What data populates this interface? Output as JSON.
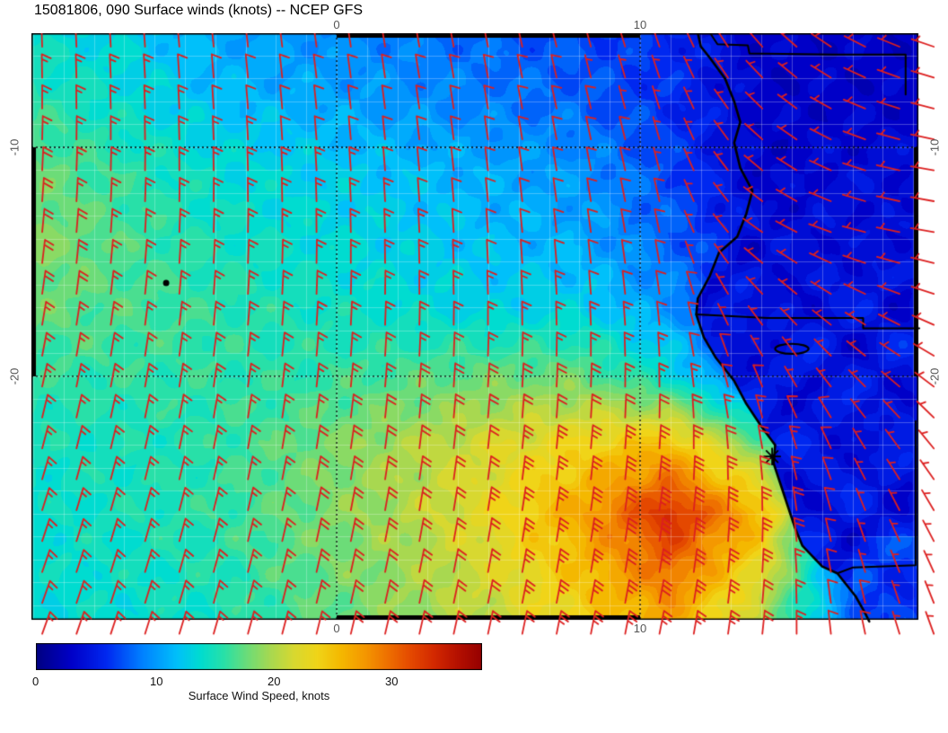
{
  "chart_data": {
    "type": "heatmap",
    "title": "15081806, 090 Surface winds (knots) -- NCEP GFS",
    "axes": {
      "top_ticks": [
        {
          "value": 0,
          "label": "0"
        },
        {
          "value": 10,
          "label": "10"
        }
      ],
      "bottom_ticks": [
        {
          "value": 0,
          "label": "0"
        },
        {
          "value": 10,
          "label": "10"
        }
      ],
      "left_ticks": [
        {
          "value": -10,
          "label": "-10"
        },
        {
          "value": -20,
          "label": "-20"
        }
      ],
      "right_ticks": [
        {
          "value": -10,
          "label": "-10"
        },
        {
          "value": -20,
          "label": "-20"
        }
      ],
      "lon_range": [
        -10.06,
        19.17
      ],
      "lat_range": [
        -5.02,
        -30.63
      ],
      "graticule_step_deg": 1,
      "labeled_lon_lines": [
        0,
        10
      ],
      "labeled_lat_lines": [
        -10,
        -20
      ]
    },
    "colorbar": {
      "label": "Surface Wind Speed, knots",
      "range": [
        0,
        38
      ],
      "ticks": [
        {
          "value": 0,
          "label": "0"
        },
        {
          "value": 10,
          "label": "10"
        },
        {
          "value": 20,
          "label": "20"
        },
        {
          "value": 30,
          "label": "30"
        }
      ],
      "stops": [
        [
          0,
          "#000082"
        ],
        [
          3,
          "#0000c8"
        ],
        [
          6,
          "#0028f0"
        ],
        [
          9,
          "#0080ff"
        ],
        [
          12,
          "#00c0fa"
        ],
        [
          14,
          "#00dcd0"
        ],
        [
          16,
          "#28e0a8"
        ],
        [
          18,
          "#6cdc78"
        ],
        [
          20,
          "#a8d850"
        ],
        [
          22,
          "#d8d830"
        ],
        [
          24,
          "#f0d418"
        ],
        [
          26,
          "#f4b800"
        ],
        [
          28,
          "#f49800"
        ],
        [
          30,
          "#ee7000"
        ],
        [
          32,
          "#e44800"
        ],
        [
          34,
          "#d22800"
        ],
        [
          36,
          "#b41000"
        ],
        [
          38,
          "#960000"
        ]
      ]
    },
    "wind": {
      "units": "knots",
      "source": "NCEP GFS",
      "barb_color": "#dc1f1f",
      "lons": [
        -10.1,
        -7,
        -4,
        -1,
        2,
        5,
        8,
        11,
        14,
        17,
        19.2
      ],
      "lats": [
        -5,
        -8,
        -11,
        -14,
        -17,
        -20,
        -23,
        -26,
        -30.7
      ],
      "speed": [
        [
          14,
          13,
          11,
          10,
          9,
          8,
          7,
          6,
          3,
          3,
          3
        ],
        [
          16,
          14,
          12,
          11,
          10,
          9,
          8,
          6,
          3,
          3,
          3
        ],
        [
          18,
          16,
          14,
          13,
          12,
          11,
          10,
          7,
          3,
          4,
          4
        ],
        [
          19,
          17,
          15,
          14,
          13,
          12,
          11,
          8,
          4,
          4,
          4
        ],
        [
          18,
          17,
          16,
          15,
          14,
          13,
          13,
          10,
          4,
          5,
          5
        ],
        [
          16,
          16,
          16,
          16,
          17,
          18,
          18,
          14,
          6,
          6,
          6
        ],
        [
          15,
          15,
          16,
          18,
          20,
          22,
          24,
          26,
          18,
          7,
          6
        ],
        [
          14,
          15,
          16,
          18,
          20,
          23,
          27,
          34,
          26,
          7,
          7
        ],
        [
          14,
          14,
          15,
          17,
          19,
          21,
          24,
          27,
          20,
          8,
          7
        ]
      ],
      "dir_from_deg": [
        [
          178,
          176,
          174,
          172,
          170,
          168,
          165,
          160,
          140,
          120,
          110
        ],
        [
          180,
          178,
          176,
          174,
          172,
          170,
          167,
          162,
          135,
          115,
          105
        ],
        [
          183,
          181,
          179,
          177,
          175,
          173,
          170,
          165,
          130,
          110,
          100
        ],
        [
          186,
          184,
          182,
          180,
          178,
          176,
          173,
          168,
          125,
          105,
          100
        ],
        [
          189,
          187,
          185,
          183,
          181,
          179,
          177,
          172,
          140,
          120,
          110
        ],
        [
          192,
          190,
          188,
          186,
          184,
          183,
          182,
          178,
          155,
          135,
          125
        ],
        [
          195,
          193,
          191,
          189,
          187,
          186,
          185,
          183,
          170,
          150,
          140
        ],
        [
          198,
          196,
          194,
          192,
          190,
          189,
          188,
          188,
          180,
          160,
          150
        ],
        [
          200,
          198,
          196,
          194,
          193,
          192,
          191,
          191,
          186,
          170,
          160
        ]
      ]
    },
    "geo": {
      "coastline": [
        [
          11.9,
          -5.0
        ],
        [
          12.0,
          -5.6
        ],
        [
          12.3,
          -6.1
        ],
        [
          12.8,
          -7.0
        ],
        [
          13.1,
          -8.0
        ],
        [
          13.3,
          -8.9
        ],
        [
          13.1,
          -9.8
        ],
        [
          13.3,
          -10.9
        ],
        [
          13.7,
          -11.9
        ],
        [
          13.5,
          -12.9
        ],
        [
          13.2,
          -13.9
        ],
        [
          12.6,
          -14.6
        ],
        [
          12.3,
          -15.6
        ],
        [
          11.9,
          -16.6
        ],
        [
          11.85,
          -17.3
        ],
        [
          12.1,
          -18.3
        ],
        [
          12.5,
          -19.2
        ],
        [
          13.1,
          -20.2
        ],
        [
          13.5,
          -21.2
        ],
        [
          14.0,
          -22.2
        ],
        [
          14.45,
          -23.0
        ],
        [
          14.4,
          -23.8
        ],
        [
          14.6,
          -24.6
        ],
        [
          14.85,
          -25.6
        ],
        [
          15.1,
          -26.6
        ],
        [
          15.35,
          -27.4
        ],
        [
          16.0,
          -28.3
        ],
        [
          16.5,
          -28.6
        ],
        [
          17.1,
          -29.6
        ],
        [
          17.4,
          -30.3
        ],
        [
          17.55,
          -30.7
        ]
      ],
      "borders": [
        [
          [
            12.3,
            -5.0
          ],
          [
            12.55,
            -5.5
          ],
          [
            13.55,
            -5.55
          ],
          [
            13.6,
            -5.9
          ],
          [
            16.4,
            -5.95
          ],
          [
            18.75,
            -5.95
          ],
          [
            18.75,
            -7.7
          ]
        ],
        [
          [
            11.85,
            -17.3
          ],
          [
            14.2,
            -17.45
          ],
          [
            17.35,
            -17.45
          ],
          [
            17.35,
            -17.9
          ],
          [
            19.2,
            -17.9
          ]
        ],
        [
          [
            19.08,
            -21.95
          ],
          [
            19.08,
            -28.25
          ],
          [
            17.0,
            -28.35
          ],
          [
            16.5,
            -28.6
          ]
        ]
      ],
      "lake_ellipse": {
        "lon": 15.0,
        "lat": -18.8,
        "rx_deg": 0.55,
        "ry_deg": 0.22
      },
      "island_dot": {
        "lon": -5.62,
        "lat": -15.92
      },
      "station_star": {
        "lon": 14.35,
        "lat": -23.5
      }
    }
  }
}
